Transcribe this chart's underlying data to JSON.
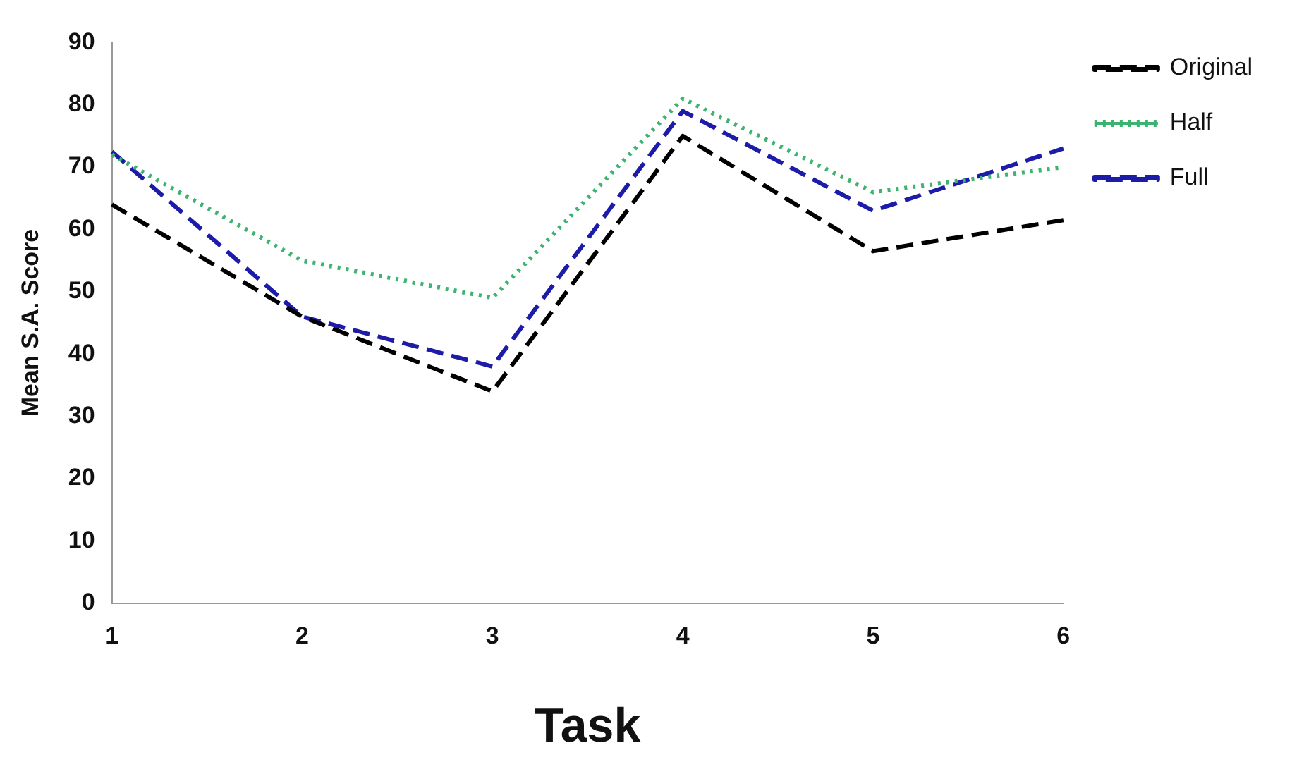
{
  "chart_data": {
    "type": "line",
    "xlabel": "Task",
    "ylabel": "Mean S.A. Score",
    "categories": [
      "1",
      "2",
      "3",
      "4",
      "5",
      "6"
    ],
    "series": [
      {
        "name": "Original",
        "color": "#000000",
        "line_style": "dashed",
        "values": [
          64,
          46,
          34,
          75,
          56.5,
          61.5
        ]
      },
      {
        "name": "Half",
        "color": "#3cb371",
        "line_style": "dotted",
        "values": [
          72,
          55,
          49,
          81,
          66,
          70
        ]
      },
      {
        "name": "Full",
        "color": "#1c1ca8",
        "line_style": "dashed",
        "values": [
          72.5,
          46,
          38,
          79,
          63,
          73
        ]
      }
    ],
    "ylim": [
      0,
      90
    ],
    "yticks": [
      0,
      10,
      20,
      30,
      40,
      50,
      60,
      70,
      80,
      90
    ],
    "grid": false,
    "legend": "top right",
    "marker": "none"
  }
}
